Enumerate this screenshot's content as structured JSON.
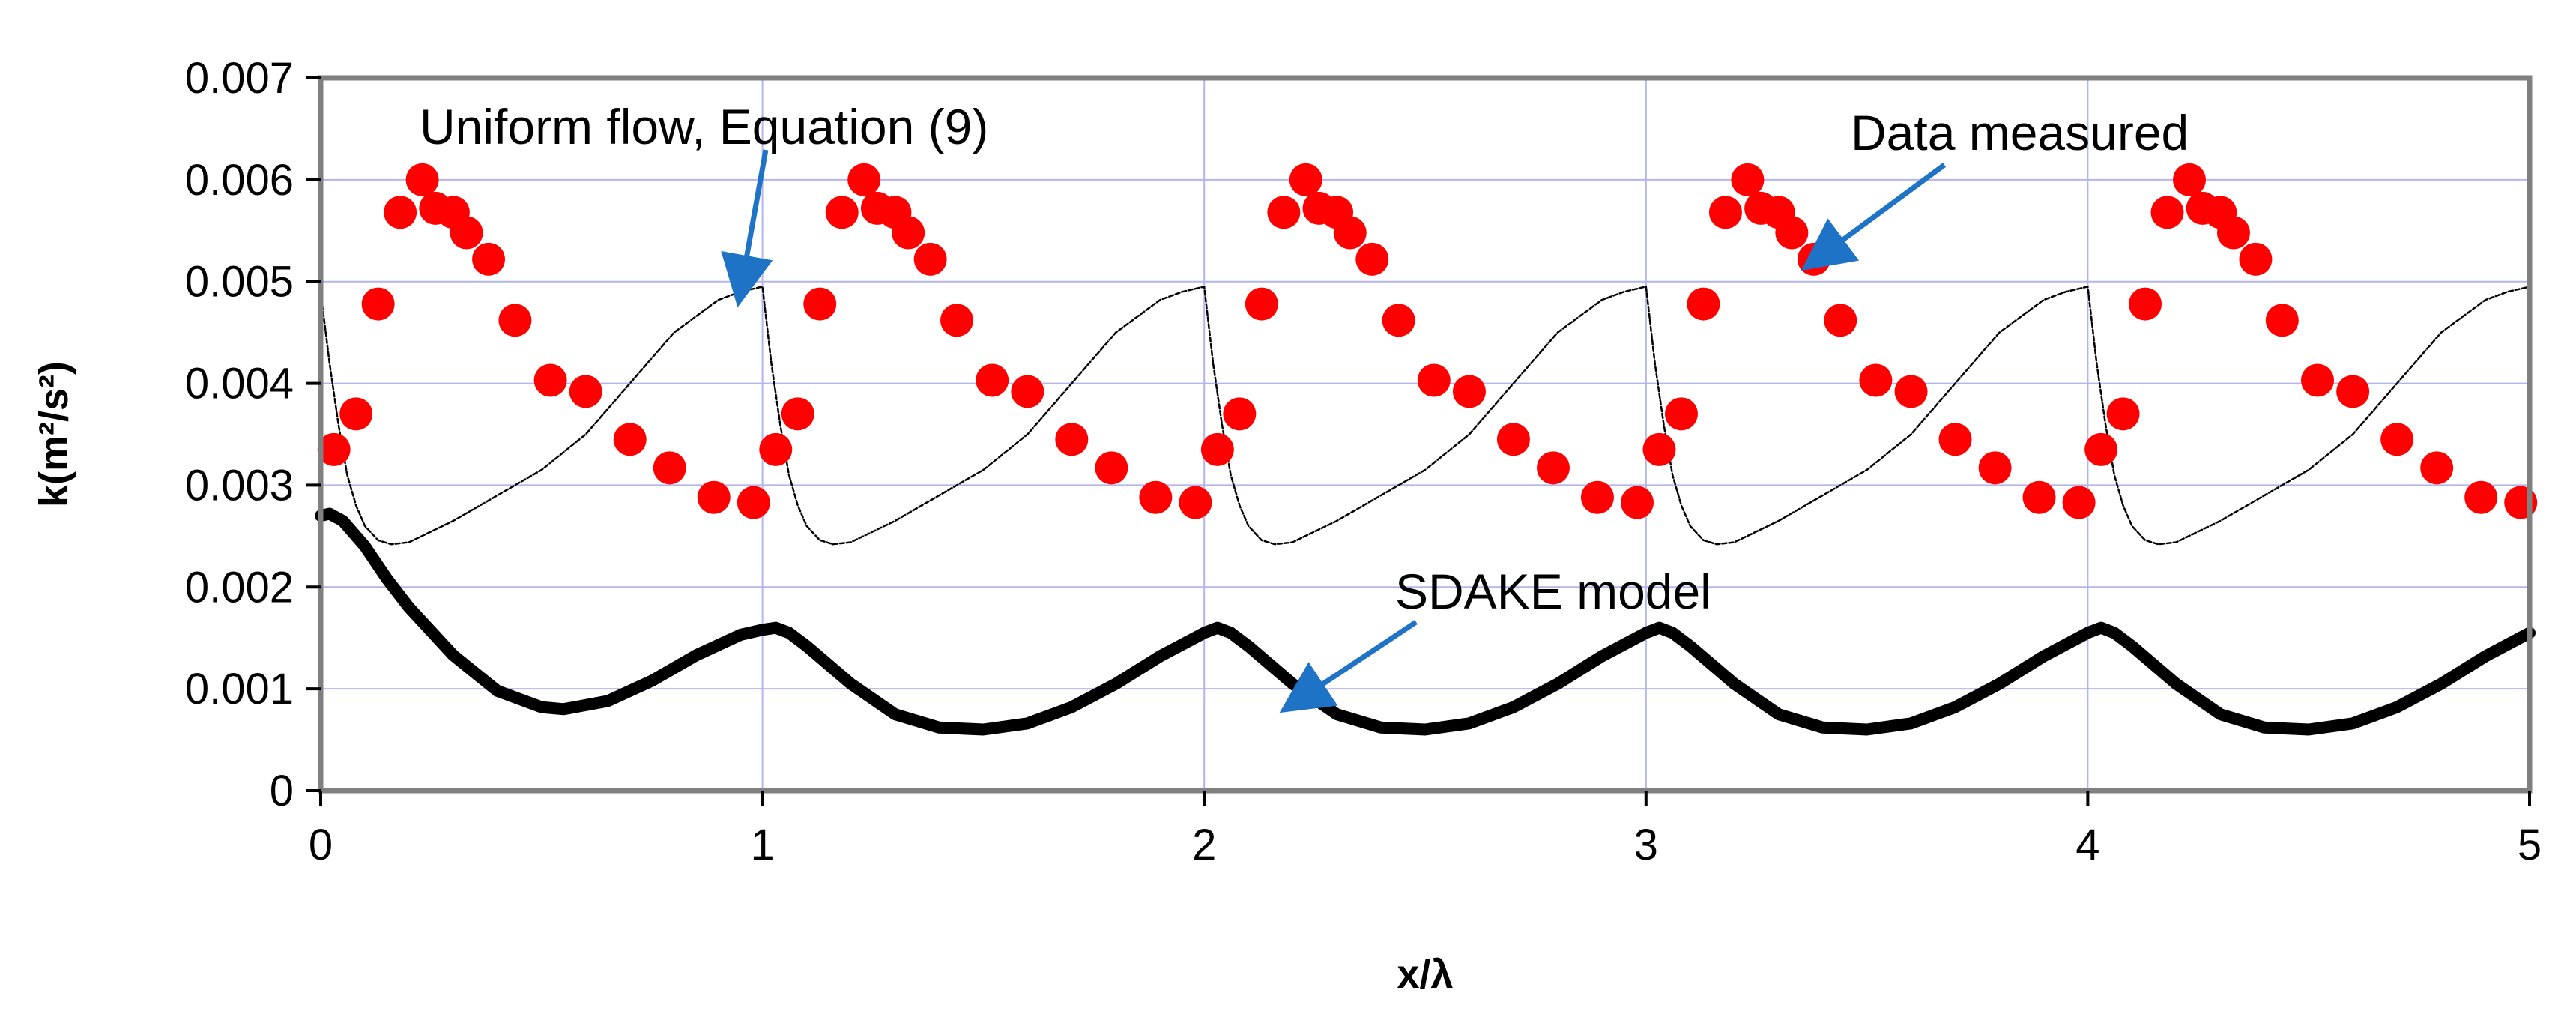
{
  "chart_data": {
    "type": "scatter",
    "xlabel": "x/λ",
    "ylabel": "k(m²/s²)",
    "xlim": [
      0,
      5
    ],
    "ylim": [
      0,
      0.007
    ],
    "x_ticks": [
      "0",
      "1",
      "2",
      "3",
      "4",
      "5"
    ],
    "y_ticks": [
      "0",
      "0.001",
      "0.002",
      "0.003",
      "0.004",
      "0.005",
      "0.006",
      "0.007"
    ],
    "grid": true,
    "legend": "none",
    "annotations": [
      {
        "text": "Uniform flow, Equation (9)",
        "target": {
          "x": 0.95,
          "y": 0.0049
        }
      },
      {
        "text": "Data measured",
        "target": {
          "x": 3.38,
          "y": 0.0052
        }
      },
      {
        "text": "SDAKE model",
        "target": {
          "x": 2.2,
          "y": 0.00085
        }
      }
    ],
    "colors": {
      "measured": "#ff0000",
      "sdake": "#000000",
      "uniform": "#000000",
      "arrow": "#1f73c6",
      "grid": "#b4b4f0",
      "frame": "#808080"
    },
    "series": [
      {
        "name": "Data measured",
        "kind": "markers",
        "x": [
          0.03,
          0.08,
          0.13,
          0.18,
          0.23,
          0.26,
          0.3,
          0.33,
          0.38,
          0.44,
          0.52,
          0.6,
          0.7,
          0.79,
          0.89,
          0.98,
          1.03,
          1.08,
          1.13,
          1.18,
          1.23,
          1.26,
          1.3,
          1.33,
          1.38,
          1.44,
          1.52,
          1.6,
          1.7,
          1.79,
          1.89,
          1.98,
          2.03,
          2.08,
          2.13,
          2.18,
          2.23,
          2.26,
          2.3,
          2.33,
          2.38,
          2.44,
          2.52,
          2.6,
          2.7,
          2.79,
          2.89,
          2.98,
          3.03,
          3.08,
          3.13,
          3.18,
          3.23,
          3.26,
          3.3,
          3.33,
          3.38,
          3.44,
          3.52,
          3.6,
          3.7,
          3.79,
          3.89,
          3.98,
          4.03,
          4.08,
          4.13,
          4.18,
          4.23,
          4.26,
          4.3,
          4.33,
          4.38,
          4.44,
          4.52,
          4.6,
          4.7,
          4.79,
          4.89,
          4.98
        ],
        "y": [
          0.00335,
          0.0037,
          0.00478,
          0.00568,
          0.006,
          0.00572,
          0.00568,
          0.00548,
          0.00522,
          0.00462,
          0.00403,
          0.00392,
          0.00345,
          0.00317,
          0.00288,
          0.00283,
          0.00335,
          0.0037,
          0.00478,
          0.00568,
          0.006,
          0.00572,
          0.00568,
          0.00548,
          0.00522,
          0.00462,
          0.00403,
          0.00392,
          0.00345,
          0.00317,
          0.00288,
          0.00283,
          0.00335,
          0.0037,
          0.00478,
          0.00568,
          0.006,
          0.00572,
          0.00568,
          0.00548,
          0.00522,
          0.00462,
          0.00403,
          0.00392,
          0.00345,
          0.00317,
          0.00288,
          0.00283,
          0.00335,
          0.0037,
          0.00478,
          0.00568,
          0.006,
          0.00572,
          0.00568,
          0.00548,
          0.00522,
          0.00462,
          0.00403,
          0.00392,
          0.00345,
          0.00317,
          0.00288,
          0.00283,
          0.00335,
          0.0037,
          0.00478,
          0.00568,
          0.006,
          0.00572,
          0.00568,
          0.00548,
          0.00522,
          0.00462,
          0.00403,
          0.00392,
          0.00345,
          0.00317,
          0.00288,
          0.00283
        ]
      },
      {
        "name": "SDAKE model",
        "kind": "line",
        "x": [
          0,
          0.02,
          0.05,
          0.1,
          0.15,
          0.2,
          0.3,
          0.4,
          0.5,
          0.55,
          0.65,
          0.75,
          0.85,
          0.95,
          1.0,
          1.03,
          1.06,
          1.1,
          1.2,
          1.3,
          1.4,
          1.5,
          1.6,
          1.7,
          1.8,
          1.9,
          2.0,
          2.03,
          2.06,
          2.1,
          2.2,
          2.3,
          2.4,
          2.5,
          2.6,
          2.7,
          2.8,
          2.9,
          3.0,
          3.03,
          3.06,
          3.1,
          3.2,
          3.3,
          3.4,
          3.5,
          3.6,
          3.7,
          3.8,
          3.9,
          4.0,
          4.03,
          4.06,
          4.1,
          4.2,
          4.3,
          4.4,
          4.5,
          4.6,
          4.7,
          4.8,
          4.9,
          5.0
        ],
        "y": [
          0.0027,
          0.00272,
          0.00265,
          0.0024,
          0.00208,
          0.0018,
          0.00133,
          0.00098,
          0.00082,
          0.0008,
          0.00088,
          0.00108,
          0.00133,
          0.00153,
          0.00158,
          0.0016,
          0.00155,
          0.00142,
          0.00105,
          0.00075,
          0.00062,
          0.0006,
          0.00066,
          0.00082,
          0.00105,
          0.00132,
          0.00155,
          0.0016,
          0.00155,
          0.00142,
          0.00105,
          0.00075,
          0.00062,
          0.0006,
          0.00066,
          0.00082,
          0.00105,
          0.00132,
          0.00155,
          0.0016,
          0.00155,
          0.00142,
          0.00105,
          0.00075,
          0.00062,
          0.0006,
          0.00066,
          0.00082,
          0.00105,
          0.00132,
          0.00155,
          0.0016,
          0.00155,
          0.00142,
          0.00105,
          0.00075,
          0.00062,
          0.0006,
          0.00066,
          0.00082,
          0.00105,
          0.00132,
          0.00155
        ]
      },
      {
        "name": "Uniform flow, Equation (9)",
        "kind": "line",
        "x": [
          0,
          0.02,
          0.04,
          0.06,
          0.08,
          0.1,
          0.13,
          0.16,
          0.2,
          0.3,
          0.4,
          0.5,
          0.6,
          0.7,
          0.8,
          0.9,
          0.95,
          0.999,
          1.0,
          1.02,
          1.04,
          1.06,
          1.08,
          1.1,
          1.13,
          1.16,
          1.2,
          1.3,
          1.4,
          1.5,
          1.6,
          1.7,
          1.8,
          1.9,
          1.95,
          1.999,
          2.0,
          2.02,
          2.04,
          2.06,
          2.08,
          2.1,
          2.13,
          2.16,
          2.2,
          2.3,
          2.4,
          2.5,
          2.6,
          2.7,
          2.8,
          2.9,
          2.95,
          2.999,
          3.0,
          3.02,
          3.04,
          3.06,
          3.08,
          3.1,
          3.13,
          3.16,
          3.2,
          3.3,
          3.4,
          3.5,
          3.6,
          3.7,
          3.8,
          3.9,
          3.95,
          3.999,
          4.0,
          4.02,
          4.04,
          4.06,
          4.08,
          4.1,
          4.13,
          4.16,
          4.2,
          4.3,
          4.4,
          4.5,
          4.6,
          4.7,
          4.8,
          4.9,
          4.95,
          5.0
        ],
        "y": [
          0.0049,
          0.0042,
          0.0036,
          0.0031,
          0.0028,
          0.0026,
          0.00246,
          0.00242,
          0.00244,
          0.00265,
          0.0029,
          0.00315,
          0.0035,
          0.004,
          0.0045,
          0.00482,
          0.0049,
          0.00495,
          0.00495,
          0.0042,
          0.0036,
          0.0031,
          0.0028,
          0.0026,
          0.00246,
          0.00242,
          0.00244,
          0.00265,
          0.0029,
          0.00315,
          0.0035,
          0.004,
          0.0045,
          0.00482,
          0.0049,
          0.00495,
          0.00495,
          0.0042,
          0.0036,
          0.0031,
          0.0028,
          0.0026,
          0.00246,
          0.00242,
          0.00244,
          0.00265,
          0.0029,
          0.00315,
          0.0035,
          0.004,
          0.0045,
          0.00482,
          0.0049,
          0.00495,
          0.00495,
          0.0042,
          0.0036,
          0.0031,
          0.0028,
          0.0026,
          0.00246,
          0.00242,
          0.00244,
          0.00265,
          0.0029,
          0.00315,
          0.0035,
          0.004,
          0.0045,
          0.00482,
          0.0049,
          0.00495,
          0.00495,
          0.0042,
          0.0036,
          0.0031,
          0.0028,
          0.0026,
          0.00246,
          0.00242,
          0.00244,
          0.00265,
          0.0029,
          0.00315,
          0.0035,
          0.004,
          0.0045,
          0.00482,
          0.0049,
          0.00495
        ]
      }
    ]
  }
}
